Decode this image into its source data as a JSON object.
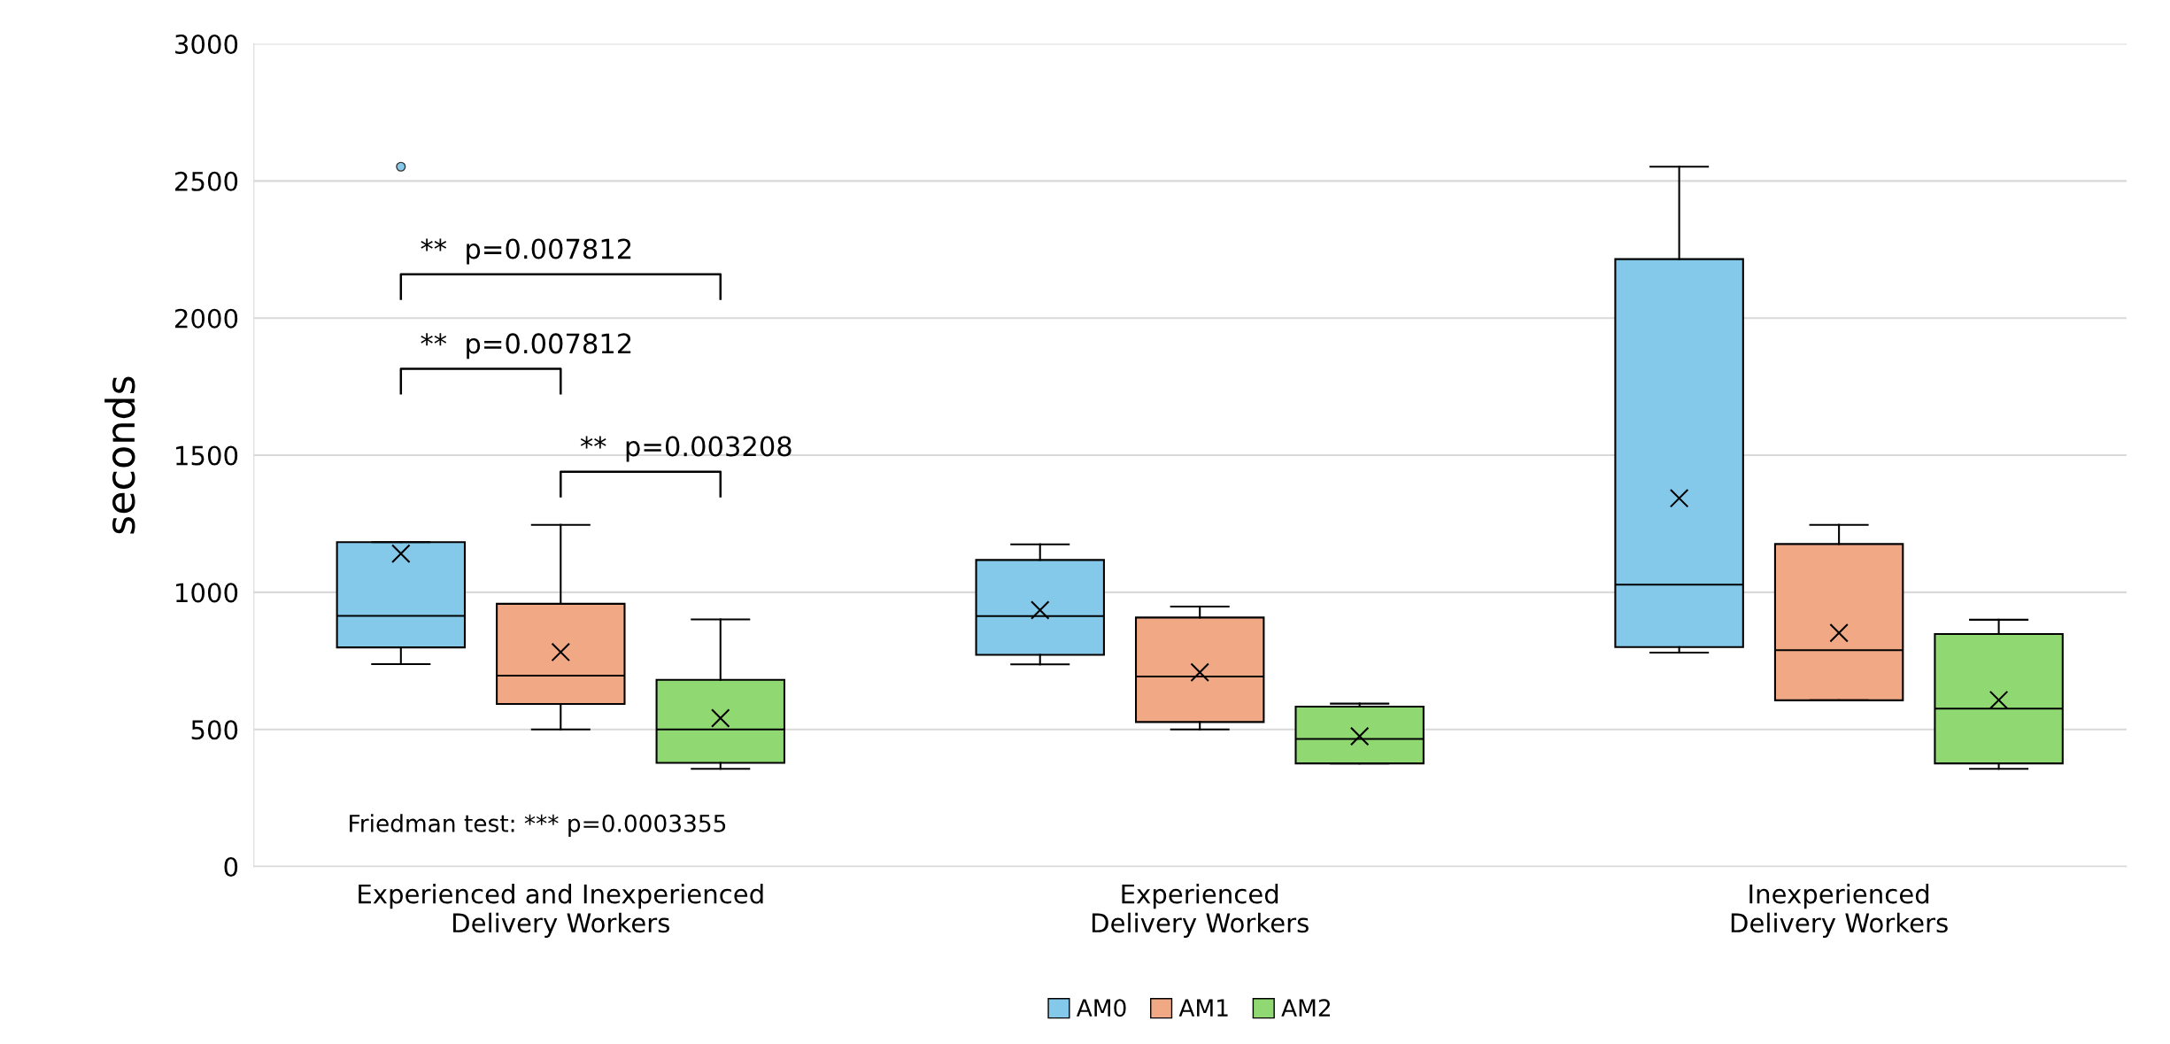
{
  "chart_data": {
    "type": "box",
    "ylabel": "seconds",
    "categories": [
      "Experienced and Inexperienced\nDelivery Workers",
      "Experienced\nDelivery Workers",
      "Inexperienced\nDelivery Workers"
    ],
    "ylim": [
      0,
      3000
    ],
    "yticks": [
      0,
      500,
      1000,
      1500,
      2000,
      2500,
      3000
    ],
    "grid": "y",
    "legend": "bottom",
    "marker": "cross",
    "series": [
      {
        "name": "AM0",
        "color": "#85c9ea",
        "boxes": [
          {
            "low": 738,
            "q1": 799,
            "median": 914,
            "q3": 1183,
            "high": 1183,
            "mean": 1141,
            "outliers": [
              2552
            ]
          },
          {
            "low": 737,
            "q1": 772,
            "median": 913,
            "q3": 1118,
            "high": 1175,
            "mean": 935
          },
          {
            "low": 780,
            "q1": 800,
            "median": 1028,
            "q3": 2215,
            "high": 2552,
            "mean": 1343
          }
        ]
      },
      {
        "name": "AM1",
        "color": "#f1a985",
        "boxes": [
          {
            "low": 500,
            "q1": 593,
            "median": 696,
            "q3": 958,
            "high": 1246,
            "mean": 782
          },
          {
            "low": 500,
            "q1": 527,
            "median": 693,
            "q3": 908,
            "high": 948,
            "mean": 708
          },
          {
            "low": 606,
            "q1": 606,
            "median": 789,
            "q3": 1176,
            "high": 1246,
            "mean": 852
          }
        ]
      },
      {
        "name": "AM2",
        "color": "#8fd872",
        "boxes": [
          {
            "low": 356,
            "q1": 378,
            "median": 500,
            "q3": 681,
            "high": 901,
            "mean": 541
          },
          {
            "low": 376,
            "q1": 376,
            "median": 465,
            "q3": 583,
            "high": 594,
            "mean": 475
          },
          {
            "low": 356,
            "q1": 376,
            "median": 576,
            "q3": 848,
            "high": 900,
            "mean": 607
          }
        ]
      }
    ],
    "annotations": [
      "**  p=0.007812",
      "**  p=0.007812",
      "**  p=0.003208",
      "Friedman test: *** p=0.0003355"
    ]
  }
}
